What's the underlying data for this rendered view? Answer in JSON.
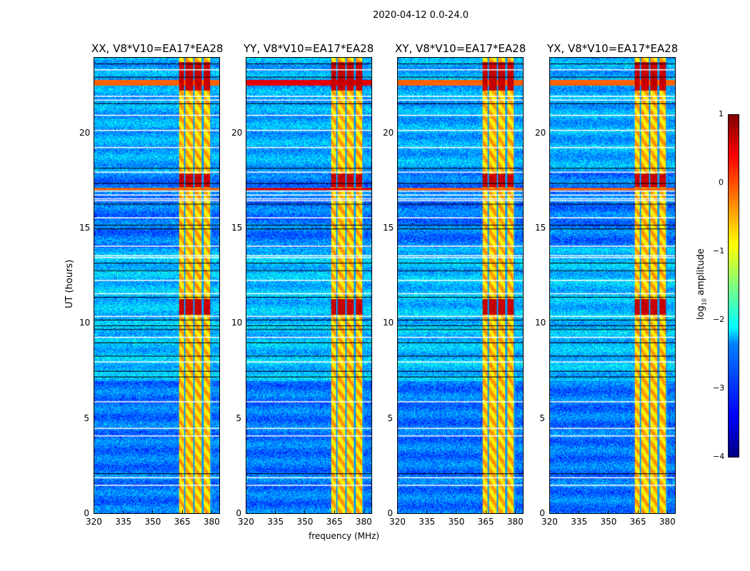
{
  "chart_data": {
    "type": "heatmap",
    "title": "2020-04-12 0.0-24.0",
    "xlabel": "frequency (MHz)",
    "ylabel": "UT (hours)",
    "xlim": [
      320,
      384.4
    ],
    "ylim": [
      0,
      24
    ],
    "xticks": [
      "320",
      "335",
      "350",
      "365",
      "380"
    ],
    "xtick_values": [
      320,
      335,
      350,
      365,
      380
    ],
    "yticks": [
      "0",
      "5",
      "10",
      "15",
      "20"
    ],
    "ytick_values": [
      0,
      5,
      10,
      15,
      20
    ],
    "panels": [
      {
        "title": "XX, V8*V10=EA17*EA28"
      },
      {
        "title": "YY, V8*V10=EA17*EA28"
      },
      {
        "title": "XY, V8*V10=EA17*EA28"
      },
      {
        "title": "YX, V8*V10=EA17*EA28"
      }
    ],
    "colorbar": {
      "label": "log10 amplitude",
      "label_base": "log",
      "label_sub": "10",
      "label_rest": " amplitude",
      "range": [
        -4,
        1
      ],
      "ticks": [
        "1",
        "0",
        "−1",
        "−2",
        "−3",
        "−4"
      ],
      "tick_values": [
        1,
        0,
        -1,
        -2,
        -3,
        -4
      ],
      "colormap": "jet"
    },
    "background_level": -2.8,
    "rfi_band_mhz": [
      363.5,
      380.2
    ],
    "rfi_band_level": -0.6,
    "rfi_gap_lines_mhz": [
      366.3,
      371.2,
      375.6,
      380.0
    ],
    "strong_rfi_hours": [
      [
        22.3,
        23.8
      ],
      [
        17.2,
        17.9
      ],
      [
        10.5,
        11.3
      ]
    ],
    "broadband_rfi_hours": [
      [
        22.55,
        22.85
      ],
      [
        17.05,
        17.15
      ]
    ],
    "flagged_white_hours": [
      1.5,
      1.9,
      4.1,
      4.5,
      5.9,
      8.0,
      9.3,
      10.4,
      11.6,
      12.3,
      13.5,
      13.6,
      14.1,
      15.6,
      16.5,
      16.6,
      16.8,
      17.0,
      18.0,
      19.3,
      20.2,
      21.0,
      21.8,
      22.0,
      23.4
    ],
    "flagged_black_hours": [
      2.1,
      7.2,
      7.5,
      8.3,
      9.0,
      9.7,
      9.9,
      10.2,
      11.4,
      12.8,
      13.2,
      15.0,
      15.2,
      16.3,
      17.4,
      18.2,
      21.6,
      23.0,
      23.7
    ]
  }
}
